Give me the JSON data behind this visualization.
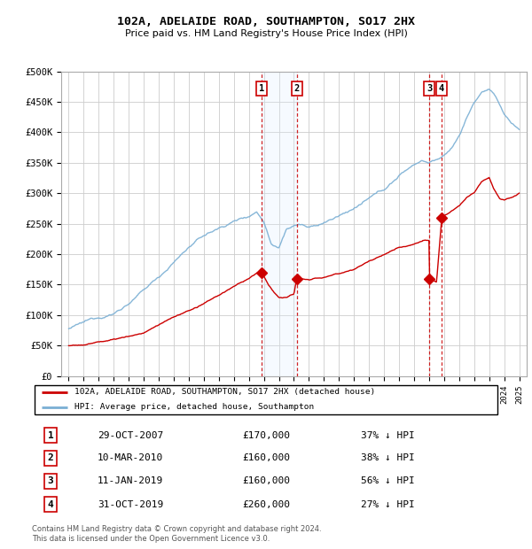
{
  "title": "102A, ADELAIDE ROAD, SOUTHAMPTON, SO17 2HX",
  "subtitle": "Price paid vs. HM Land Registry's House Price Index (HPI)",
  "footer": "Contains HM Land Registry data © Crown copyright and database right 2024.\nThis data is licensed under the Open Government Licence v3.0.",
  "legend_label_red": "102A, ADELAIDE ROAD, SOUTHAMPTON, SO17 2HX (detached house)",
  "legend_label_blue": "HPI: Average price, detached house, Southampton",
  "transactions": [
    {
      "num": 1,
      "date": "29-OCT-2007",
      "price": 170000,
      "pct": "37%",
      "dir": "↓",
      "label": "HPI",
      "year": 2007.83
    },
    {
      "num": 2,
      "date": "10-MAR-2010",
      "price": 160000,
      "pct": "38%",
      "dir": "↓",
      "label": "HPI",
      "year": 2010.19
    },
    {
      "num": 3,
      "date": "11-JAN-2019",
      "price": 160000,
      "pct": "56%",
      "dir": "↓",
      "label": "HPI",
      "year": 2019.03
    },
    {
      "num": 4,
      "date": "31-OCT-2019",
      "price": 260000,
      "pct": "27%",
      "dir": "↓",
      "label": "HPI",
      "year": 2019.83
    }
  ],
  "vline_dates": [
    2007.83,
    2010.19,
    2019.03,
    2019.83
  ],
  "shade_regions": [
    [
      2007.83,
      2010.19
    ]
  ],
  "ylim": [
    0,
    500000
  ],
  "yticks": [
    0,
    50000,
    100000,
    150000,
    200000,
    250000,
    300000,
    350000,
    400000,
    450000,
    500000
  ],
  "xlim": [
    1994.5,
    2025.5
  ],
  "background_color": "#ffffff",
  "grid_color": "#cccccc",
  "red_color": "#cc0000",
  "blue_color": "#7aafd4",
  "shade_color": "#ddeeff",
  "vline_color": "#cc0000"
}
